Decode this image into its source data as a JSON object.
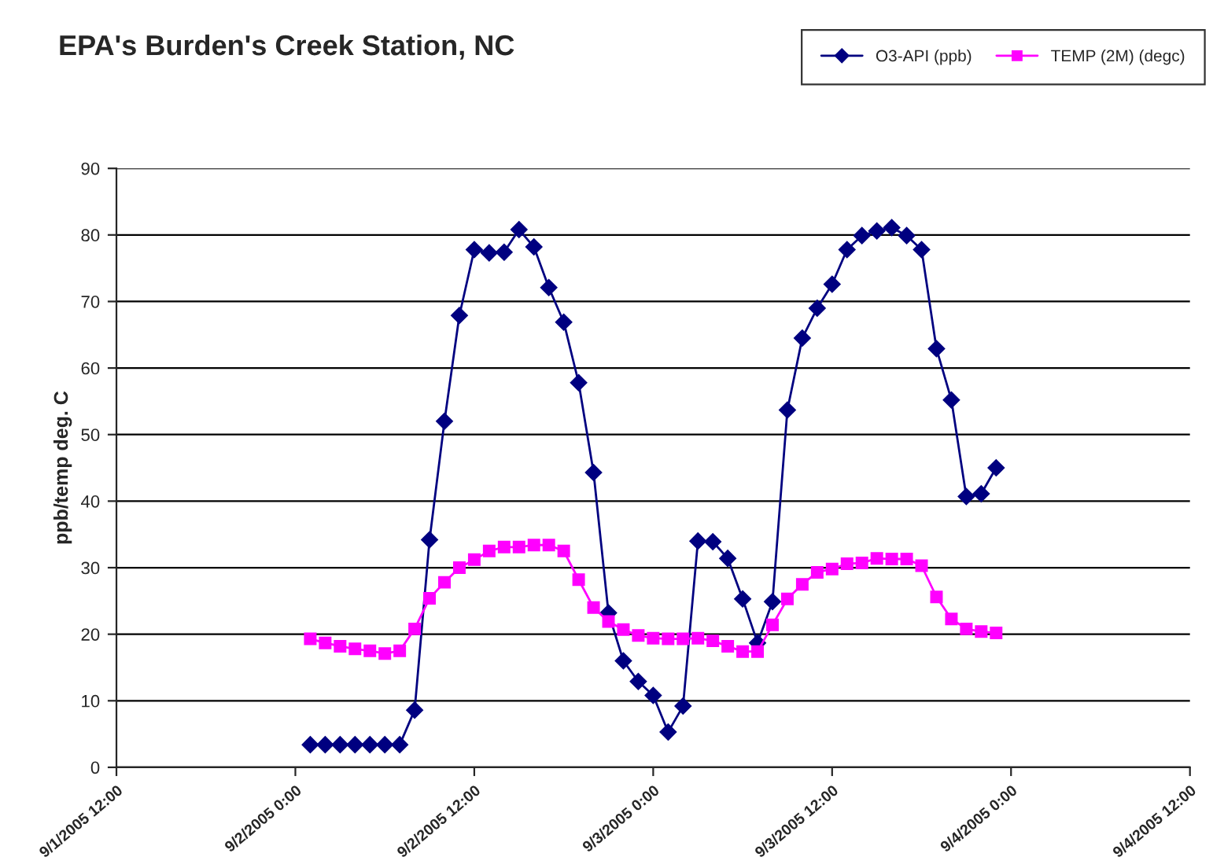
{
  "chart_data": {
    "type": "line",
    "title": "EPA's Burden's Creek Station, NC",
    "ylabel": "ppb/temp deg. C",
    "x": [
      "2005-09-02T01:00",
      "2005-09-02T02:00",
      "2005-09-02T03:00",
      "2005-09-02T04:00",
      "2005-09-02T05:00",
      "2005-09-02T06:00",
      "2005-09-02T07:00",
      "2005-09-02T08:00",
      "2005-09-02T09:00",
      "2005-09-02T10:00",
      "2005-09-02T11:00",
      "2005-09-02T12:00",
      "2005-09-02T13:00",
      "2005-09-02T14:00",
      "2005-09-02T15:00",
      "2005-09-02T16:00",
      "2005-09-02T17:00",
      "2005-09-02T18:00",
      "2005-09-02T19:00",
      "2005-09-02T20:00",
      "2005-09-02T21:00",
      "2005-09-02T22:00",
      "2005-09-02T23:00",
      "2005-09-03T00:00",
      "2005-09-03T01:00",
      "2005-09-03T02:00",
      "2005-09-03T03:00",
      "2005-09-03T04:00",
      "2005-09-03T05:00",
      "2005-09-03T06:00",
      "2005-09-03T07:00",
      "2005-09-03T08:00",
      "2005-09-03T09:00",
      "2005-09-03T10:00",
      "2005-09-03T11:00",
      "2005-09-03T12:00",
      "2005-09-03T13:00",
      "2005-09-03T14:00",
      "2005-09-03T15:00",
      "2005-09-03T16:00",
      "2005-09-03T17:00",
      "2005-09-03T18:00",
      "2005-09-03T19:00",
      "2005-09-03T20:00",
      "2005-09-03T21:00",
      "2005-09-03T22:00",
      "2005-09-03T23:00"
    ],
    "series": [
      {
        "name": "O3-API (ppb)",
        "color": "#000080",
        "marker": "diamond",
        "values": [
          3.4,
          3.4,
          3.4,
          3.4,
          3.4,
          3.4,
          3.4,
          8.6,
          34.2,
          52.0,
          67.9,
          77.8,
          77.3,
          77.4,
          80.8,
          78.2,
          72.1,
          66.9,
          57.8,
          44.3,
          23.2,
          16.0,
          12.9,
          10.8,
          5.3,
          9.2,
          34.0,
          33.9,
          31.4,
          25.3,
          18.7,
          24.9,
          53.7,
          64.5,
          69.0,
          72.6,
          77.8,
          79.9,
          80.6,
          81.1,
          79.9,
          77.8,
          62.9,
          55.2,
          40.7,
          41.1,
          45.0
        ]
      },
      {
        "name": "TEMP (2M) (degc)",
        "color": "#ff00ff",
        "marker": "square",
        "values": [
          19.3,
          18.7,
          18.2,
          17.8,
          17.5,
          17.1,
          17.5,
          20.8,
          25.4,
          27.8,
          30.0,
          31.2,
          32.5,
          33.1,
          33.1,
          33.4,
          33.4,
          32.5,
          28.2,
          24.0,
          21.9,
          20.7,
          19.8,
          19.4,
          19.3,
          19.3,
          19.4,
          19.0,
          18.2,
          17.4,
          17.4,
          21.4,
          25.3,
          27.5,
          29.3,
          29.8,
          30.6,
          30.7,
          31.4,
          31.3,
          31.3,
          30.3,
          25.6,
          22.3,
          20.8,
          20.4,
          20.2
        ]
      }
    ],
    "xlim": [
      "2005-09-01T12:00",
      "2005-09-04T12:00"
    ],
    "xticks": [
      {
        "value": "2005-09-01T12:00",
        "label": "9/1/2005 12:00"
      },
      {
        "value": "2005-09-02T00:00",
        "label": "9/2/2005 0:00"
      },
      {
        "value": "2005-09-02T12:00",
        "label": "9/2/2005 12:00"
      },
      {
        "value": "2005-09-03T00:00",
        "label": "9/3/2005 0:00"
      },
      {
        "value": "2005-09-03T12:00",
        "label": "9/3/2005 12:00"
      },
      {
        "value": "2005-09-04T00:00",
        "label": "9/4/2005 0:00"
      },
      {
        "value": "2005-09-04T12:00",
        "label": "9/4/2005 12:00"
      }
    ],
    "ylim": [
      0,
      90
    ],
    "yticks": [
      0,
      10,
      20,
      30,
      40,
      50,
      60,
      70,
      80,
      90
    ],
    "grid": "y",
    "legend": "top right",
    "line_style": "solid"
  }
}
